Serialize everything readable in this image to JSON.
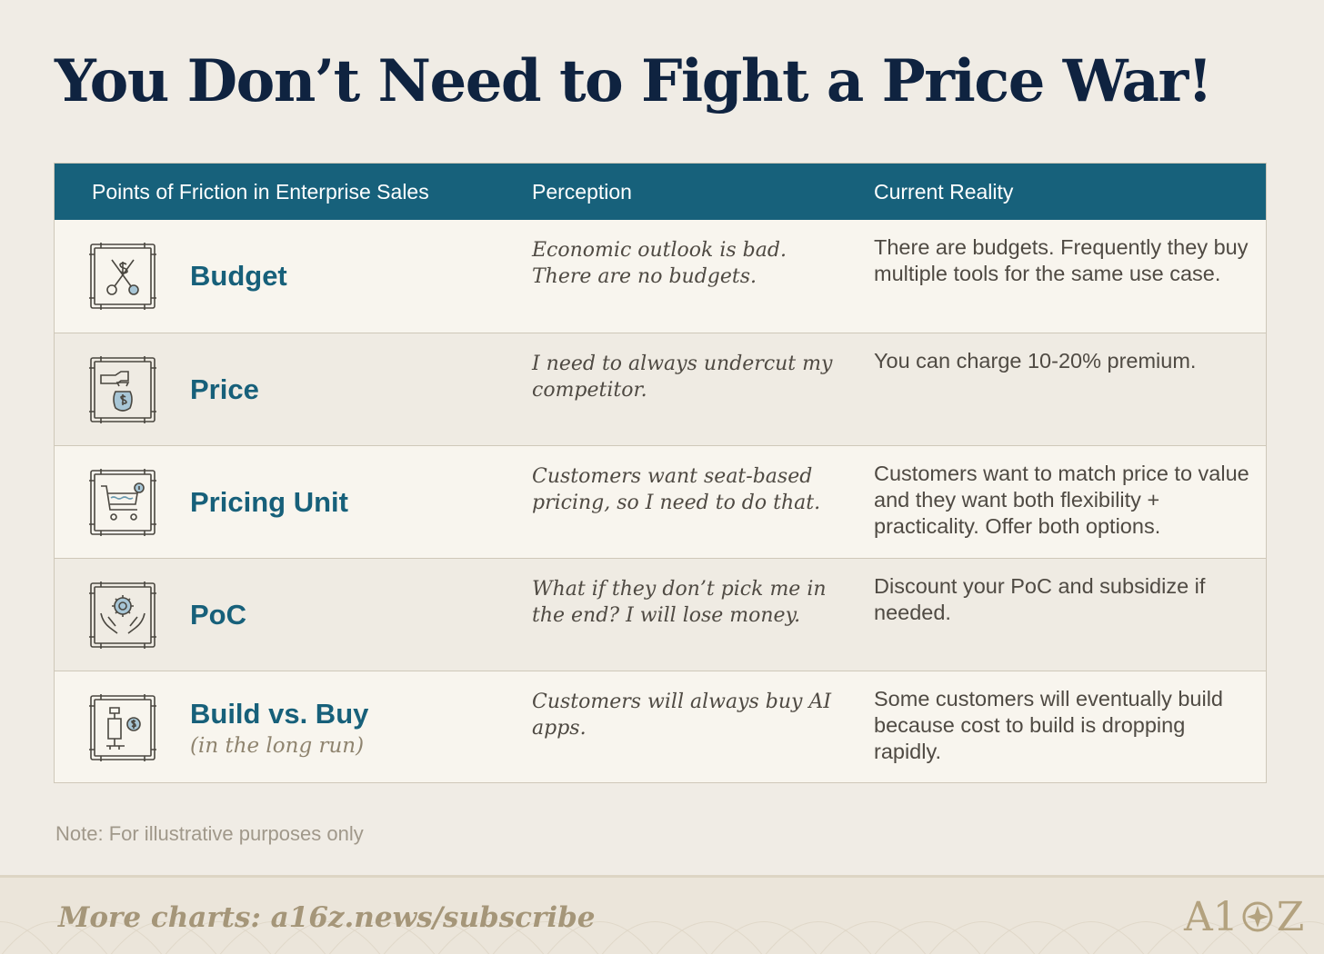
{
  "title": "You Don’t Need to Fight a Price War!",
  "table": {
    "headers": [
      "Points of Friction in Enterprise Sales",
      "Perception",
      "Current Reality"
    ],
    "rows": [
      {
        "icon": "scissors-dollar-icon",
        "label": "Budget",
        "perception": "Economic outlook is bad. There are no budgets.",
        "reality": "There are budgets. Frequently they buy multiple tools for the same use case."
      },
      {
        "icon": "hand-money-bag-icon",
        "label": "Price",
        "perception": "I need to always undercut my competitor.",
        "reality": "You can charge 10-20% premium."
      },
      {
        "icon": "shopping-cart-icon",
        "label": "Pricing Unit",
        "perception": "Customers want seat-based pricing, so I need to do that.",
        "reality": "Customers want to match price to value and they want both flexibility + practicality. Offer both options."
      },
      {
        "icon": "hands-gear-icon",
        "label": "PoC",
        "perception": "What if they don’t pick me in the end? I will lose money.",
        "reality": "Discount your PoC and subsidize if needed."
      },
      {
        "icon": "build-buy-icon",
        "label": "Build vs. Buy",
        "sublabel": "(in the long run)",
        "perception": "Customers will always buy AI apps.",
        "reality": "Some customers will eventually build because cost to build is dropping rapidly."
      }
    ]
  },
  "note": "Note: For illustrative purposes only",
  "footer": {
    "text": "More charts: a16z.news/subscribe",
    "logo_left": "A1",
    "logo_right": "Z",
    "logo_icon": "a16z-logo-icon"
  },
  "colors": {
    "background": "#f0ece5",
    "title": "#0f2340",
    "header": "#17617b",
    "label": "#17607a",
    "icon_accent": "#a8c6d6"
  }
}
